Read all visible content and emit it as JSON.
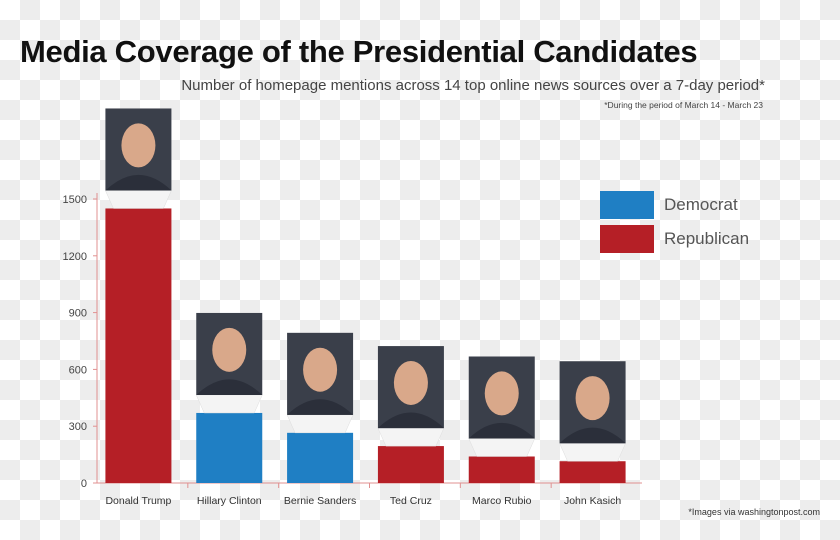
{
  "chart_data": {
    "type": "bar",
    "title": "Media Coverage of the Presidential Candidates",
    "subtitle": "Number of homepage mentions across 14 top online news sources over a 7-day period*",
    "note": "*During the period of March 14 - March 23",
    "credit": "*Images via washingtonpost.com",
    "categories": [
      "Donald Trump",
      "Hillary Clinton",
      "Bernie Sanders",
      "Ted Cruz",
      "Marco Rubio",
      "John Kasich"
    ],
    "values": [
      1450,
      370,
      265,
      195,
      140,
      115
    ],
    "party": [
      "Republican",
      "Democrat",
      "Democrat",
      "Republican",
      "Republican",
      "Republican"
    ],
    "ylim": [
      0,
      1500
    ],
    "yticks": [
      0,
      300,
      600,
      900,
      1200,
      1500
    ],
    "xlabel": "",
    "ylabel": "",
    "grid": false,
    "legend_position": "top-right",
    "legend": [
      {
        "name": "Democrat",
        "color": "#1f7fc4"
      },
      {
        "name": "Republican",
        "color": "#b51f26"
      }
    ],
    "axis_color": "#e09090",
    "candidate_photos": true
  }
}
